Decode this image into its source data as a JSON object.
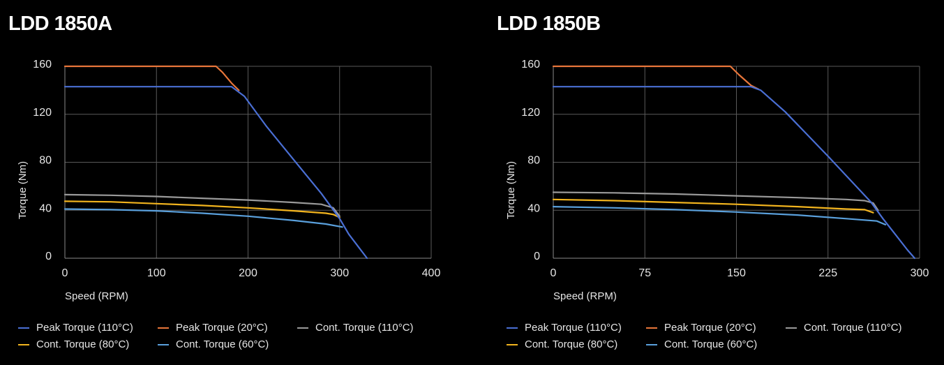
{
  "chart_data": [
    {
      "type": "line",
      "title": "LDD 1850A",
      "xlabel": "Speed (RPM)",
      "ylabel": "Torque (Nm)",
      "xlim": [
        0,
        400
      ],
      "ylim": [
        0,
        160
      ],
      "xticks": [
        0,
        100,
        200,
        300,
        400
      ],
      "yticks": [
        0,
        40,
        80,
        120,
        160
      ],
      "grid": true,
      "legend_position": "bottom",
      "series": [
        {
          "name": "Peak Torque (110°C)",
          "color": "#4a6fd4",
          "points": [
            [
              0,
              143
            ],
            [
              182,
              143
            ],
            [
              196,
              135
            ],
            [
              220,
              110
            ],
            [
              250,
              82
            ],
            [
              280,
              54
            ],
            [
              300,
              33
            ],
            [
              310,
              20
            ],
            [
              320,
              10
            ],
            [
              330,
              0
            ]
          ]
        },
        {
          "name": "Peak Torque (20°C)",
          "color": "#e8763a",
          "points": [
            [
              0,
              160
            ],
            [
              165,
              160
            ],
            [
              172,
              155
            ],
            [
              182,
              146
            ],
            [
              190,
              140
            ]
          ]
        },
        {
          "name": "Cont. Torque (110°C)",
          "color": "#9a9a9a",
          "points": [
            [
              0,
              53
            ],
            [
              50,
              52.5
            ],
            [
              100,
              51.5
            ],
            [
              150,
              50
            ],
            [
              200,
              48.5
            ],
            [
              250,
              46.5
            ],
            [
              280,
              45
            ],
            [
              293,
              42
            ],
            [
              300,
              35
            ]
          ]
        },
        {
          "name": "Cont. Torque (80°C)",
          "color": "#f2b41e",
          "points": [
            [
              0,
              47.5
            ],
            [
              50,
              47
            ],
            [
              100,
              45.5
            ],
            [
              150,
              44
            ],
            [
              200,
              42
            ],
            [
              250,
              39.5
            ],
            [
              285,
              37.5
            ],
            [
              293,
              36.5
            ],
            [
              300,
              34
            ]
          ]
        },
        {
          "name": "Cont. Torque (60°C)",
          "color": "#5aa0dc",
          "points": [
            [
              0,
              41
            ],
            [
              50,
              40.5
            ],
            [
              100,
              39.5
            ],
            [
              150,
              37.5
            ],
            [
              200,
              35
            ],
            [
              250,
              31.5
            ],
            [
              285,
              28.5
            ],
            [
              303,
              26
            ]
          ]
        }
      ]
    },
    {
      "type": "line",
      "title": "LDD 1850B",
      "xlabel": "Speed (RPM)",
      "ylabel": "Torque (Nm)",
      "xlim": [
        0,
        300
      ],
      "ylim": [
        0,
        160
      ],
      "xticks": [
        0,
        75,
        150,
        225,
        300
      ],
      "yticks": [
        0,
        40,
        80,
        120,
        160
      ],
      "grid": true,
      "legend_position": "bottom",
      "series": [
        {
          "name": "Peak Torque (110°C)",
          "color": "#4a6fd4",
          "points": [
            [
              0,
              143
            ],
            [
              162,
              143
            ],
            [
              170,
              140
            ],
            [
              190,
              122
            ],
            [
              225,
              85
            ],
            [
              260,
              47
            ],
            [
              270,
              33
            ],
            [
              280,
              20
            ],
            [
              290,
              7
            ],
            [
              296,
              0
            ]
          ]
        },
        {
          "name": "Peak Torque (20°C)",
          "color": "#e8763a",
          "points": [
            [
              0,
              160
            ],
            [
              145,
              160
            ],
            [
              152,
              153
            ],
            [
              162,
              144
            ],
            [
              168,
              141
            ]
          ]
        },
        {
          "name": "Cont. Torque (110°C)",
          "color": "#9a9a9a",
          "points": [
            [
              0,
              55
            ],
            [
              50,
              54.5
            ],
            [
              100,
              53.5
            ],
            [
              150,
              52
            ],
            [
              200,
              50.5
            ],
            [
              240,
              49
            ],
            [
              255,
              48
            ],
            [
              262,
              46
            ],
            [
              266,
              40
            ]
          ]
        },
        {
          "name": "Cont. Torque (80°C)",
          "color": "#f2b41e",
          "points": [
            [
              0,
              49
            ],
            [
              50,
              48
            ],
            [
              100,
              46.5
            ],
            [
              150,
              45
            ],
            [
              200,
              43
            ],
            [
              240,
              41
            ],
            [
              255,
              40.5
            ],
            [
              262,
              38
            ]
          ]
        },
        {
          "name": "Cont. Torque (60°C)",
          "color": "#5aa0dc",
          "points": [
            [
              0,
              43
            ],
            [
              50,
              42
            ],
            [
              100,
              40.5
            ],
            [
              150,
              38.5
            ],
            [
              200,
              36
            ],
            [
              240,
              33
            ],
            [
              265,
              31
            ],
            [
              272,
              28
            ]
          ]
        }
      ]
    }
  ]
}
